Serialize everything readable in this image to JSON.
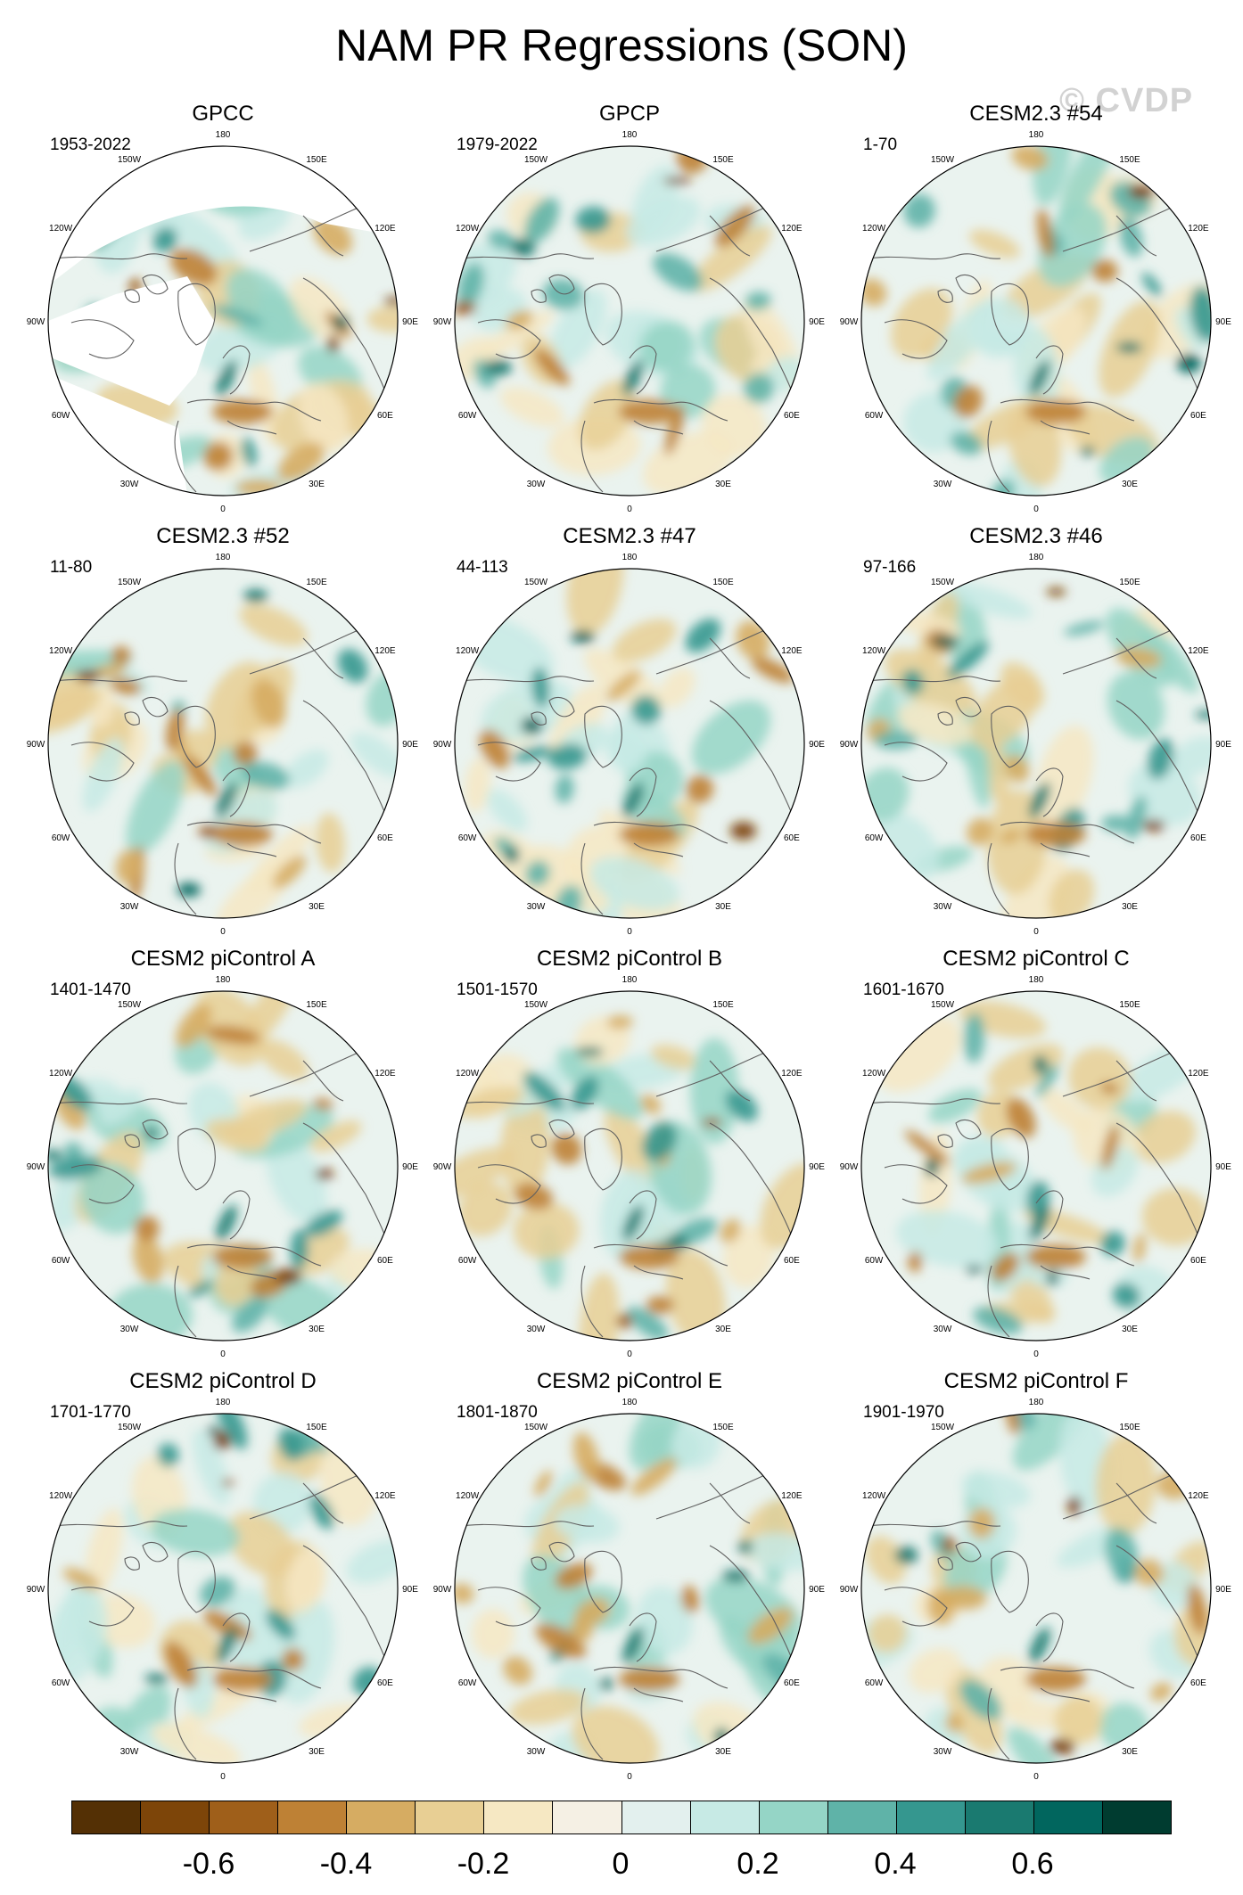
{
  "title": "NAM PR Regressions (SON)",
  "watermark": "© CVDP",
  "chart_data": {
    "type": "polar-stereographic contour map panels",
    "variable": "PR regressions onto NAM",
    "season": "SON",
    "projection": "north polar stereographic",
    "longitude_labels": [
      "180",
      "150E",
      "120E",
      "90E",
      "60E",
      "30E",
      "0",
      "30W",
      "60W",
      "90W",
      "120W",
      "150W"
    ],
    "colorbar": {
      "colors": [
        "#543005",
        "#7d4509",
        "#9f5f1a",
        "#be8135",
        "#d6ac62",
        "#e8cf94",
        "#f6e8c3",
        "#f5f0e4",
        "#e3f0ee",
        "#c7eae5",
        "#95d5c6",
        "#5fb3a8",
        "#35978f",
        "#1a7a70",
        "#01665e",
        "#003c30"
      ],
      "tick_labels": [
        "-0.6",
        "-0.4",
        "-0.2",
        "0",
        "0.2",
        "0.4",
        "0.6"
      ]
    },
    "panels": [
      {
        "title": "GPCC",
        "period": "1953-2022",
        "observational": true
      },
      {
        "title": "GPCP",
        "period": "1979-2022"
      },
      {
        "title": "CESM2.3 #54",
        "period": "1-70"
      },
      {
        "title": "CESM2.3 #52",
        "period": "11-80"
      },
      {
        "title": "CESM2.3 #47",
        "period": "44-113"
      },
      {
        "title": "CESM2.3 #46",
        "period": "97-166"
      },
      {
        "title": "CESM2 piControl A",
        "period": "1401-1470"
      },
      {
        "title": "CESM2 piControl B",
        "period": "1501-1570"
      },
      {
        "title": "CESM2 piControl C",
        "period": "1601-1670"
      },
      {
        "title": "CESM2 piControl D",
        "period": "1701-1770"
      },
      {
        "title": "CESM2 piControl E",
        "period": "1801-1870"
      },
      {
        "title": "CESM2 piControl F",
        "period": "1901-1970"
      }
    ]
  }
}
